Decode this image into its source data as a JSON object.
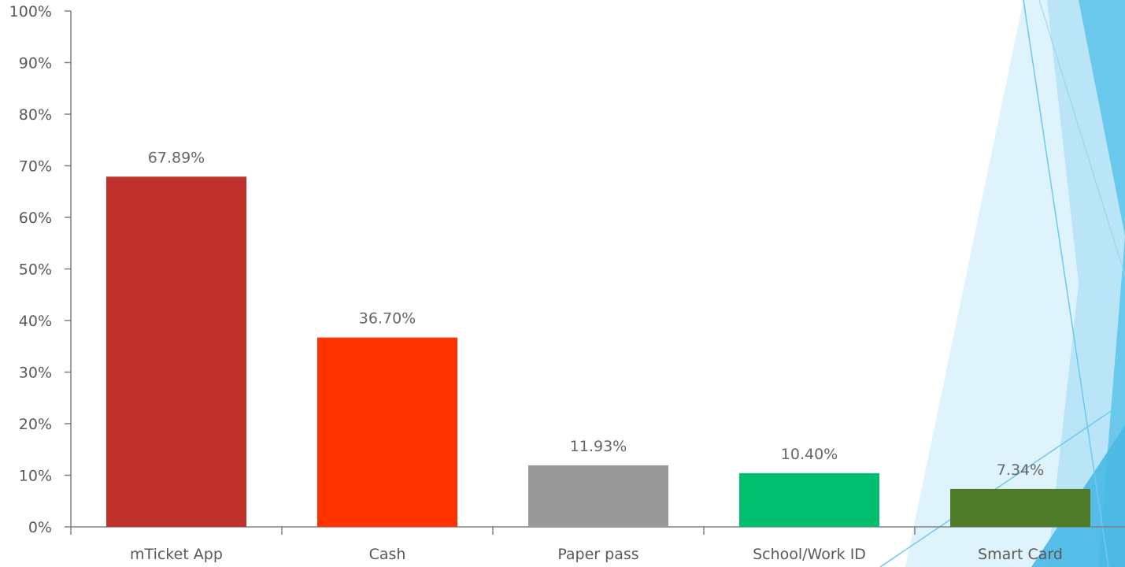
{
  "chart_data": {
    "type": "bar",
    "categories": [
      "mTicket App",
      "Cash",
      "Paper pass",
      "School/Work ID",
      "Smart Card"
    ],
    "values": [
      67.89,
      36.7,
      11.93,
      10.4,
      7.34
    ],
    "data_labels": [
      "67.89%",
      "36.70%",
      "11.93%",
      "10.40%",
      "7.34%"
    ],
    "bar_colors": [
      "#c0312b",
      "#ff3300",
      "#999999",
      "#00bf6f",
      "#4f7a28"
    ],
    "ylim": [
      0,
      100
    ],
    "y_ticks": [
      0,
      10,
      20,
      30,
      40,
      50,
      60,
      70,
      80,
      90,
      100
    ],
    "y_tick_labels": [
      "0%",
      "10%",
      "20%",
      "30%",
      "40%",
      "50%",
      "60%",
      "70%",
      "80%",
      "90%",
      "100%"
    ],
    "grid": false,
    "legend": "none",
    "title": "",
    "xlabel": "",
    "ylabel": ""
  },
  "theme": {
    "axis_color": "#7f7f7f",
    "label_color": "#595959",
    "accent_light": "#bfe6f7",
    "accent_mid": "#7ecfef",
    "accent_dark": "#4ab8e6"
  }
}
